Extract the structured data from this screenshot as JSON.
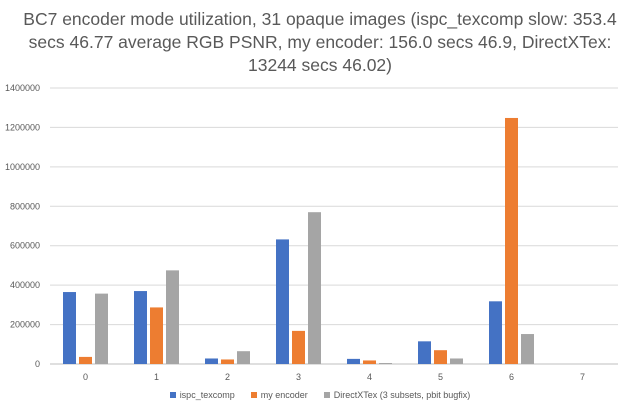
{
  "chart_data": {
    "type": "bar",
    "title": "BC7 encoder mode utilization, 31 opaque images (ispc_texcomp slow: 353.4 secs 46.77 average RGB PSNR, my encoder: 156.0 secs 46.9, DirectXTex: 13244 secs 46.02)",
    "categories": [
      "0",
      "1",
      "2",
      "3",
      "4",
      "5",
      "6",
      "7"
    ],
    "series": [
      {
        "name": "ispc_texcomp",
        "color": "#4472c4",
        "values": [
          365000,
          370000,
          28000,
          632000,
          26000,
          115000,
          318000,
          0
        ]
      },
      {
        "name": "my encoder",
        "color": "#ed7d31",
        "values": [
          36000,
          287000,
          23000,
          168000,
          18000,
          70000,
          1248000,
          0
        ]
      },
      {
        "name": "DirectXTex (3 subsets, pbit bugfix)",
        "color": "#a5a5a5",
        "values": [
          357000,
          475000,
          65000,
          770000,
          5000,
          28000,
          152000,
          0
        ]
      }
    ],
    "ylim": [
      0,
      1400000
    ],
    "yticks": [
      "0",
      "200000",
      "400000",
      "600000",
      "800000",
      "1000000",
      "1200000",
      "1400000"
    ],
    "grid": true,
    "legend": "bottom"
  }
}
